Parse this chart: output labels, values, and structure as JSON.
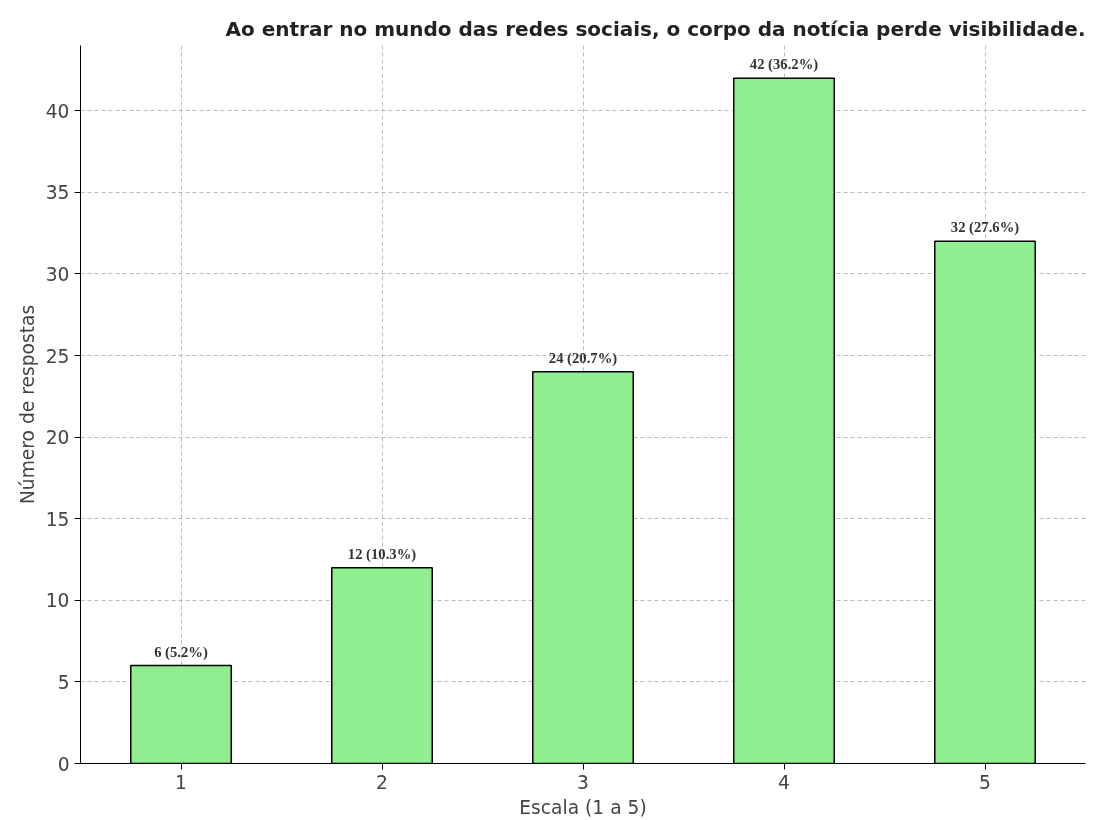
{
  "chart_data": {
    "type": "bar",
    "title": "Ao entrar no mundo das redes sociais, o corpo da notícia perde visibilidade.",
    "xlabel": "Escala (1 a 5)",
    "ylabel": "Número de respostas",
    "categories": [
      "1",
      "2",
      "3",
      "4",
      "5"
    ],
    "values": [
      6,
      12,
      24,
      42,
      32
    ],
    "value_labels": [
      "6 (5.2%)",
      "12 (10.3%)",
      "24 (20.7%)",
      "42 (36.2%)",
      "32 (27.6%)"
    ],
    "color": "#90ee90",
    "ylim": [
      0,
      44
    ],
    "yticks": [
      0,
      5,
      10,
      15,
      20,
      25,
      30,
      35,
      40
    ],
    "grid": true
  }
}
